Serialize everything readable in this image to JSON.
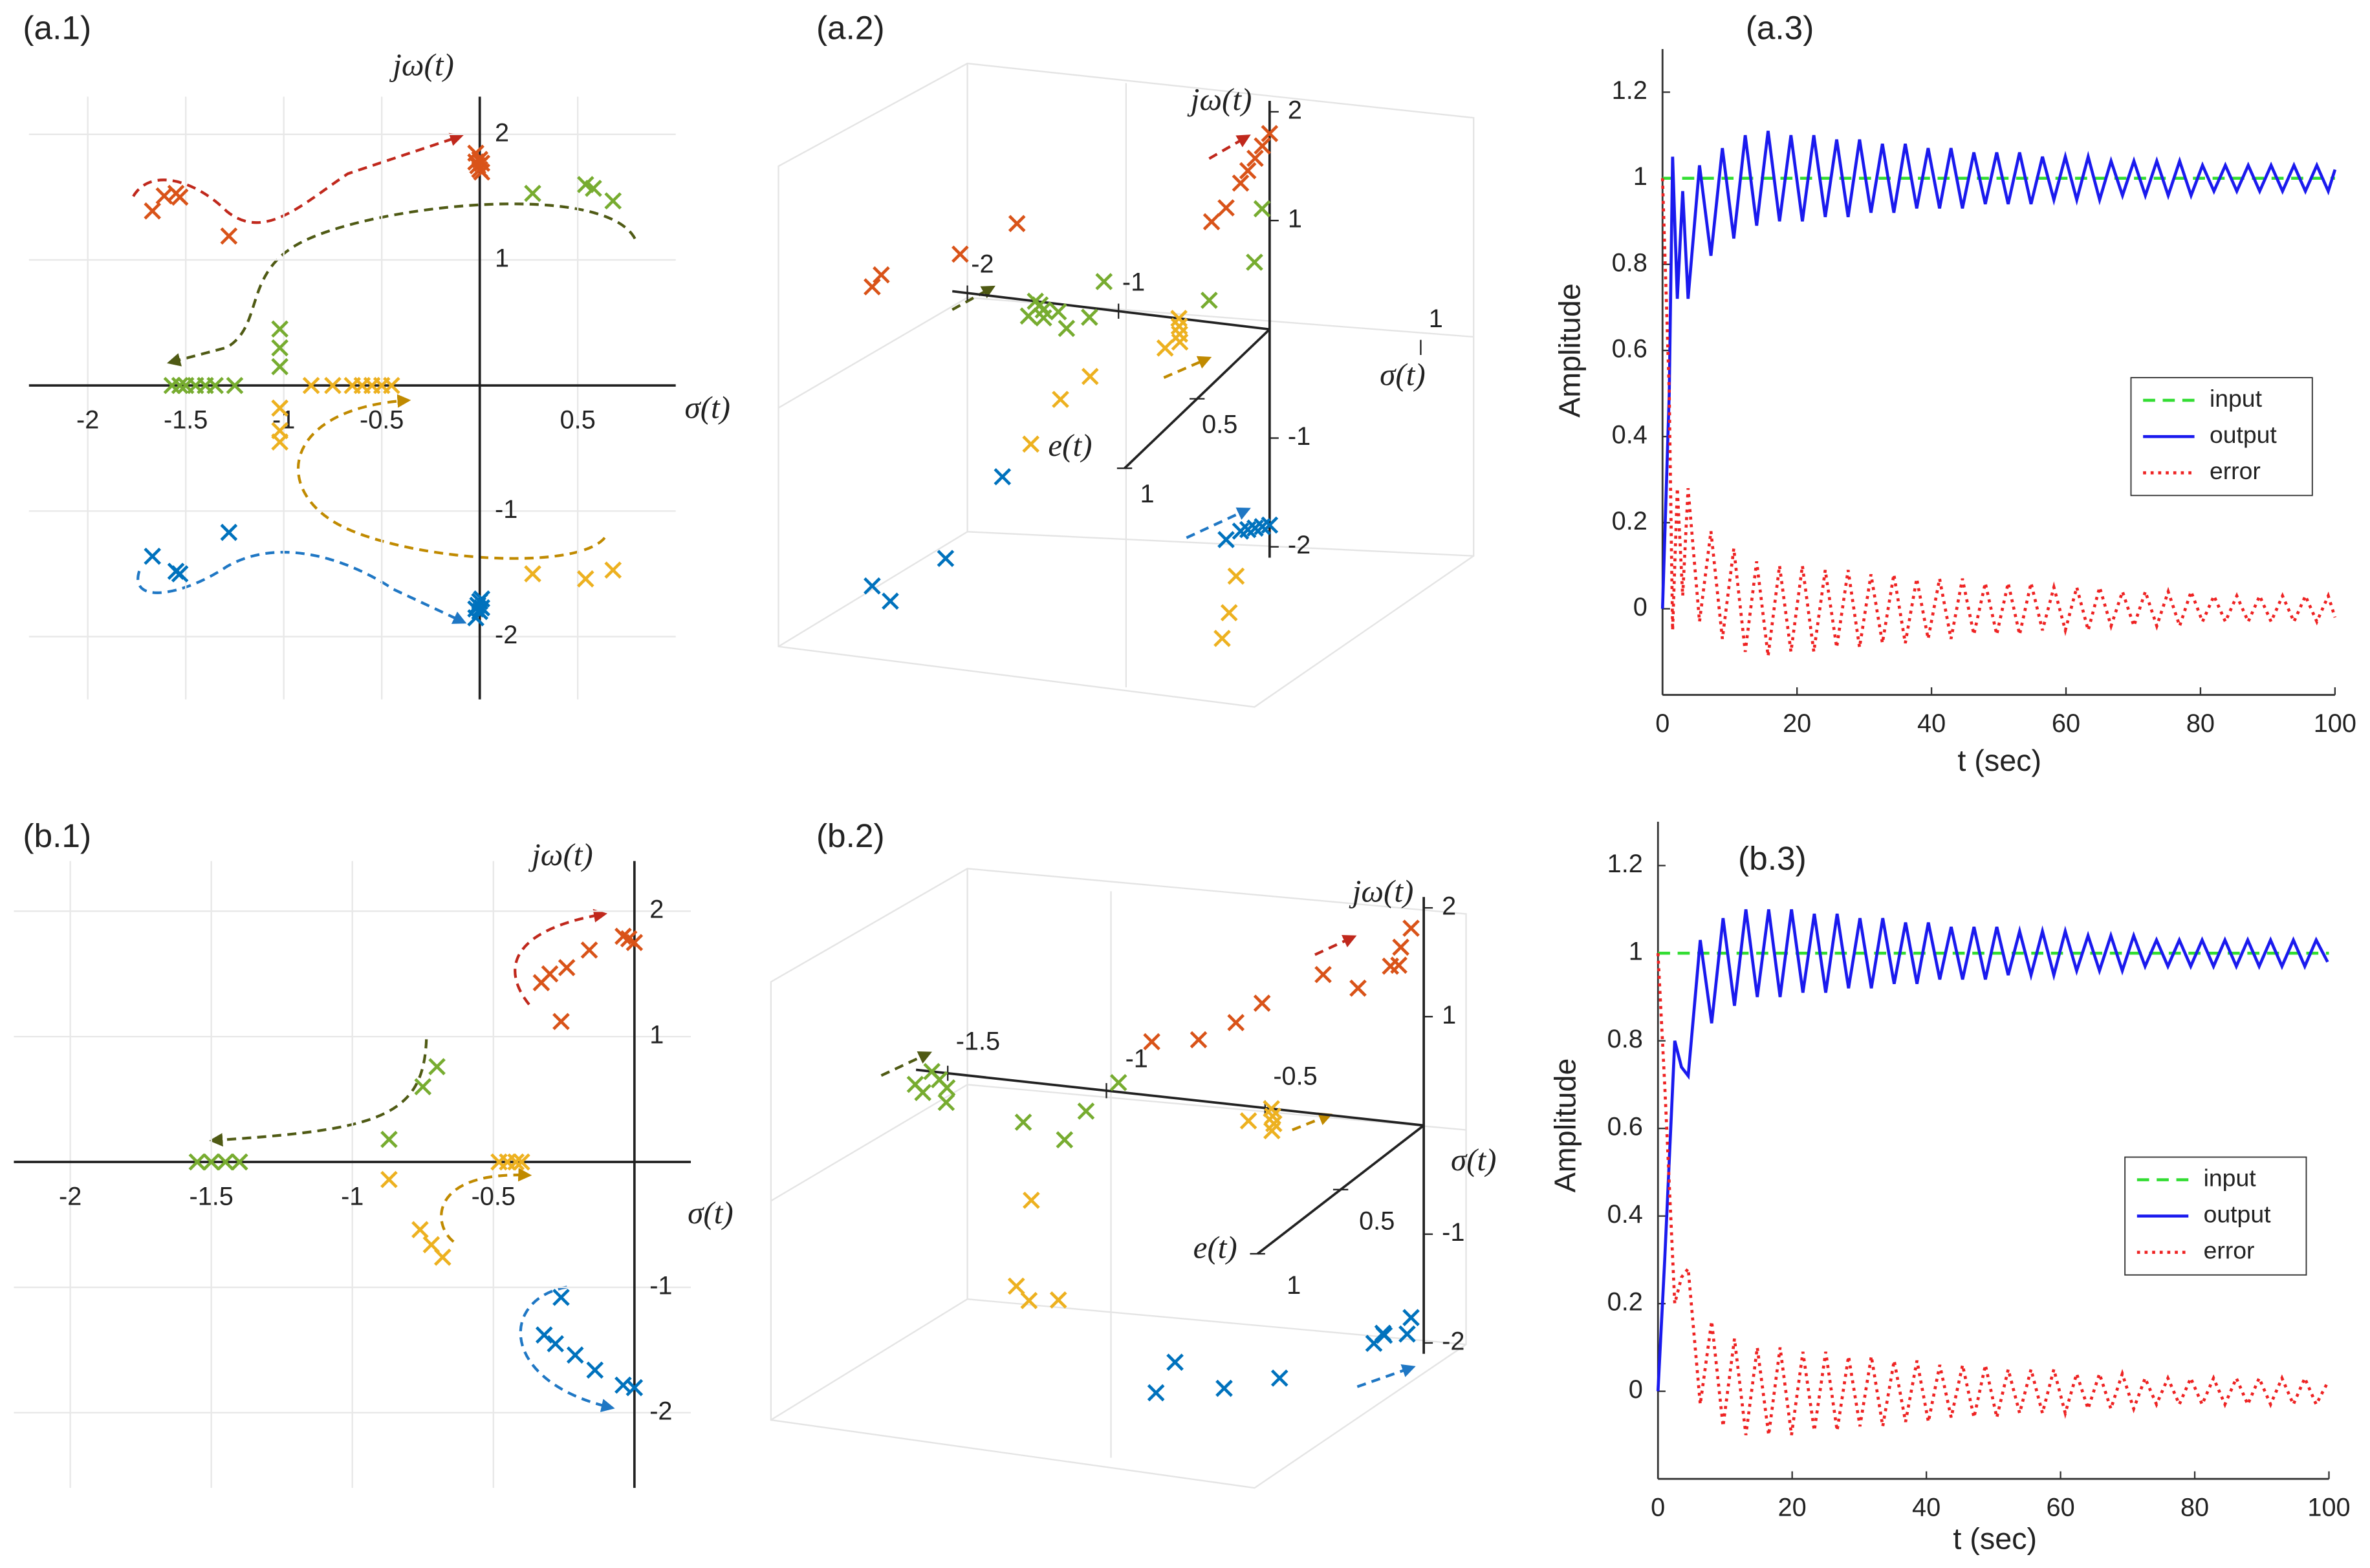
{
  "chart_data": [
    {
      "type": "scatter",
      "title": "(a.1)",
      "xlabel": "σ(t)",
      "ylabel": "jω(t)",
      "xlim": [
        -2.3,
        1.0
      ],
      "ylim": [
        -2.5,
        2.3
      ],
      "xticks": [
        -2,
        -1.5,
        -1,
        -0.5,
        0.5
      ],
      "yticks": [
        -2,
        -1,
        1,
        2
      ],
      "grid": true,
      "marker": "x",
      "series": [
        {
          "color": "#d95319",
          "x": [
            -1.67,
            -1.61,
            -1.55,
            -1.53,
            -1.28,
            -0.02,
            0,
            0.01,
            -0.01,
            0,
            0.01,
            -0.02
          ],
          "values": [
            1.39,
            1.51,
            1.53,
            1.5,
            1.19,
            1.85,
            1.8,
            1.77,
            1.75,
            1.72,
            1.7,
            1.78
          ]
        },
        {
          "color": "#77ac30",
          "x": [
            0.27,
            0.54,
            0.58,
            0.68,
            -1.57,
            -1.53,
            -1.5,
            -1.45,
            -1.4,
            -1.35,
            -1.25,
            -1.02,
            -1.02,
            -1.02
          ],
          "values": [
            1.53,
            1.6,
            1.57,
            1.47,
            0,
            0,
            0,
            0,
            0,
            0,
            0,
            0.45,
            0.3,
            0.15
          ]
        },
        {
          "color": "#edb120",
          "x": [
            -0.86,
            -0.75,
            -0.65,
            -0.6,
            -0.55,
            -0.5,
            -0.45,
            -1.02,
            -1.02,
            -1.02,
            0.27,
            0.54,
            0.68
          ],
          "values": [
            0,
            0,
            0,
            0,
            0,
            0,
            0,
            -0.18,
            -0.36,
            -0.45,
            -1.5,
            -1.54,
            -1.47
          ]
        },
        {
          "color": "#0072bd",
          "x": [
            -1.67,
            -1.55,
            -1.53,
            -1.28,
            -0.02,
            0,
            0.01,
            -0.01,
            0,
            0.01,
            -0.02
          ],
          "values": [
            -1.36,
            -1.48,
            -1.5,
            -1.17,
            -1.85,
            -1.8,
            -1.77,
            -1.75,
            -1.72,
            -1.7,
            -1.78
          ]
        }
      ]
    },
    {
      "type": "scatter3d",
      "title": "(a.2)",
      "xlabel": "σ(t)",
      "ylabel": "jω(t)",
      "zlabel": "e(t)",
      "xlim": [
        -2.1,
        1
      ],
      "ylim": [
        -2.1,
        2.1
      ],
      "zlim": [
        0,
        1
      ],
      "xticks": [
        -2,
        -1,
        1
      ],
      "yticks": [
        -2,
        -1,
        1,
        2
      ],
      "zticks": [
        0.5,
        1
      ],
      "marker": "x",
      "series": [
        {
          "color": "#d95319",
          "x": [
            -1.67,
            -1.61,
            -1.28,
            -1.0,
            0,
            0,
            0,
            0,
            0,
            0,
            0
          ],
          "values": [
            1.39,
            1.51,
            1.5,
            1.7,
            1.8,
            1.75,
            1.7,
            1.65,
            1.6,
            1.5,
            1.5
          ],
          "z": [
            1,
            1,
            0.8,
            0.7,
            0,
            0.05,
            0.1,
            0.15,
            0.2,
            0.3,
            0.4
          ]
        },
        {
          "color": "#77ac30",
          "x": [
            -1.55,
            -1.5,
            -1.45,
            -1.4,
            -1.5,
            -1.35,
            -1.2,
            -1.0,
            -1.0,
            -0.05,
            -0.1,
            -0.4
          ],
          "values": [
            0,
            0,
            0,
            0,
            0,
            0,
            0,
            0.4,
            0.2,
            1.1,
            0.6,
            0.2
          ],
          "z": [
            0,
            0.02,
            0.05,
            0.1,
            0.1,
            0.05,
            0.15,
            0.1,
            0.2,
            0,
            0,
            0
          ]
        },
        {
          "color": "#edb120",
          "x": [
            -0.6,
            -0.55,
            -0.5,
            -0.45,
            -0.5,
            -1,
            -0.9,
            -1.1,
            0.5,
            0.55,
            0.45
          ],
          "values": [
            0,
            0,
            0,
            0,
            0,
            -0.3,
            -0.2,
            -0.6,
            -1.5,
            -1.6,
            -1.3
          ],
          "z": [
            0,
            0.05,
            0.1,
            0.15,
            0.2,
            0.4,
            0.3,
            0.5,
            0.8,
            0.9,
            0.7
          ]
        },
        {
          "color": "#0072bd",
          "x": [
            -1.67,
            -1.55,
            -1.28,
            -1.0,
            0,
            0,
            0,
            0,
            0,
            0
          ],
          "values": [
            -1.36,
            -1.48,
            -1.17,
            -0.5,
            -1.8,
            -1.75,
            -1.7,
            -1.65,
            -1.6,
            -1.55
          ],
          "z": [
            1,
            1,
            0.9,
            0.8,
            0,
            0.05,
            0.1,
            0.15,
            0.2,
            0.3
          ]
        }
      ]
    },
    {
      "type": "line",
      "title": "(a.3)",
      "xlabel": "t (sec)",
      "ylabel": "Amplitude",
      "xlim": [
        0,
        100
      ],
      "ylim": [
        -0.2,
        1.3
      ],
      "xticks": [
        0,
        20,
        40,
        60,
        80,
        100
      ],
      "yticks": [
        0,
        0.2,
        0.4,
        0.6,
        0.8,
        1,
        1.2
      ],
      "legend": "east",
      "x": [
        0,
        1,
        1.5,
        2.2,
        3,
        3.8,
        5.5,
        7.2,
        8.9,
        10.6,
        12.3,
        14,
        15.7,
        17.4,
        19.1,
        20.8,
        22.5,
        24.2,
        25.9,
        27.6,
        29.3,
        31,
        32.7,
        34.4,
        36.1,
        37.8,
        39.5,
        41.2,
        42.9,
        44.6,
        46.3,
        48,
        49.7,
        51.4,
        53.1,
        54.8,
        56.5,
        58.2,
        59.9,
        61.6,
        63.3,
        65,
        66.7,
        68.4,
        70.1,
        71.8,
        73.5,
        75.2,
        76.9,
        78.6,
        80.3,
        82,
        83.7,
        85.4,
        87.1,
        88.8,
        90.5,
        92.2,
        93.9,
        95.6,
        97.3,
        99,
        100
      ],
      "series": [
        {
          "name": "input",
          "color": "#33dd33",
          "dash": "dashed",
          "x": [
            0,
            100
          ],
          "values": [
            1,
            1
          ]
        },
        {
          "name": "output",
          "color": "#1a1aee",
          "dash": "solid",
          "values": [
            0,
            0.5,
            1.05,
            0.72,
            0.97,
            0.72,
            1.03,
            0.82,
            1.07,
            0.86,
            1.1,
            0.89,
            1.11,
            0.9,
            1.1,
            0.9,
            1.1,
            0.91,
            1.09,
            0.91,
            1.09,
            0.92,
            1.08,
            0.92,
            1.08,
            0.93,
            1.07,
            0.93,
            1.07,
            0.93,
            1.06,
            0.94,
            1.06,
            0.94,
            1.06,
            0.94,
            1.05,
            0.95,
            1.05,
            0.95,
            1.05,
            0.95,
            1.04,
            0.96,
            1.04,
            0.96,
            1.04,
            0.96,
            1.04,
            0.96,
            1.03,
            0.97,
            1.03,
            0.97,
            1.03,
            0.97,
            1.03,
            0.97,
            1.03,
            0.97,
            1.03,
            0.97,
            1.02
          ]
        },
        {
          "name": "error",
          "color": "#ee2222",
          "dash": "dotted",
          "values": [
            1,
            0.5,
            -0.05,
            0.28,
            0.03,
            0.28,
            -0.03,
            0.18,
            -0.07,
            0.14,
            -0.1,
            0.11,
            -0.11,
            0.1,
            -0.1,
            0.1,
            -0.1,
            0.09,
            -0.09,
            0.09,
            -0.09,
            0.08,
            -0.08,
            0.08,
            -0.08,
            0.07,
            -0.07,
            0.07,
            -0.07,
            0.07,
            -0.06,
            0.06,
            -0.06,
            0.06,
            -0.06,
            0.06,
            -0.05,
            0.05,
            -0.05,
            0.05,
            -0.05,
            0.05,
            -0.04,
            0.04,
            -0.04,
            0.04,
            -0.04,
            0.04,
            -0.04,
            0.04,
            -0.03,
            0.03,
            -0.03,
            0.03,
            -0.03,
            0.03,
            -0.03,
            0.03,
            -0.03,
            0.03,
            -0.03,
            0.03,
            -0.02
          ]
        }
      ]
    },
    {
      "type": "scatter",
      "title": "(b.1)",
      "xlabel": "σ(t)",
      "ylabel": "jω(t)",
      "xlim": [
        -2.2,
        0.2
      ],
      "ylim": [
        -2.6,
        2.4
      ],
      "xticks": [
        -2,
        -1.5,
        -1,
        -0.5
      ],
      "yticks": [
        -2,
        -1,
        1,
        2
      ],
      "grid": true,
      "marker": "x",
      "series": [
        {
          "color": "#d95319",
          "x": [
            -0.33,
            -0.3,
            -0.24,
            -0.16,
            -0.26,
            -0.04,
            -0.02,
            0
          ],
          "values": [
            1.43,
            1.5,
            1.55,
            1.69,
            1.12,
            1.8,
            1.78,
            1.75
          ]
        },
        {
          "color": "#77ac30",
          "x": [
            -0.7,
            -0.75,
            -0.87,
            -1.55,
            -1.5,
            -1.45,
            -1.4
          ],
          "values": [
            0.76,
            0.6,
            0.18,
            0,
            0,
            0,
            0
          ]
        },
        {
          "color": "#edb120",
          "x": [
            -0.87,
            -0.76,
            -0.72,
            -0.68,
            -0.48,
            -0.45,
            -0.42,
            -0.4
          ],
          "values": [
            -0.14,
            -0.54,
            -0.66,
            -0.76,
            0,
            0,
            0,
            0
          ]
        },
        {
          "color": "#0072bd",
          "x": [
            -0.26,
            -0.32,
            -0.28,
            -0.21,
            -0.14,
            -0.04,
            0
          ],
          "values": [
            -1.08,
            -1.38,
            -1.45,
            -1.54,
            -1.66,
            -1.78,
            -1.8
          ]
        }
      ]
    },
    {
      "type": "scatter3d",
      "title": "(b.2)",
      "xlabel": "σ(t)",
      "ylabel": "jω(t)",
      "zlabel": "e(t)",
      "xlim": [
        -1.6,
        0
      ],
      "ylim": [
        -2.1,
        2.1
      ],
      "zlim": [
        0,
        1
      ],
      "xticks": [
        -1.5,
        -1,
        -0.5
      ],
      "yticks": [
        -2,
        -1,
        1,
        2
      ],
      "zticks": [
        0.5,
        1
      ],
      "marker": "x",
      "series": [
        {
          "color": "#d95319",
          "x": [
            -0.33,
            -0.3,
            -0.16,
            -0.5,
            -0.7,
            -0.04,
            -0.02,
            0,
            -0.05,
            0
          ],
          "values": [
            1.43,
            1.5,
            1.69,
            1.1,
            0.9,
            1.8,
            1.75,
            1.7,
            1.6,
            1.65
          ],
          "z": [
            0.5,
            0.4,
            0.3,
            0.4,
            0.3,
            0,
            0.1,
            0.2,
            0.3,
            0.15
          ]
        },
        {
          "color": "#77ac30",
          "x": [
            -1.55,
            -1.5,
            -1.45,
            -1.5,
            -1.4,
            -1.55,
            -0.87,
            -0.75,
            -0.7,
            -1.0
          ],
          "values": [
            0,
            0,
            0,
            0,
            0,
            0,
            0.18,
            0.6,
            0.76,
            0.3
          ],
          "z": [
            0,
            0.05,
            0.1,
            0.15,
            0.2,
            0.1,
            0.5,
            0.6,
            0.5,
            0.5
          ]
        },
        {
          "color": "#edb120",
          "x": [
            -0.48,
            -0.45,
            -0.42,
            -0.4,
            -0.5,
            -0.87,
            -0.76,
            -0.72,
            -0.68
          ],
          "values": [
            0,
            0,
            0,
            0,
            0,
            -0.14,
            -0.54,
            -0.66,
            -0.76
          ],
          "z": [
            0,
            0.05,
            0.1,
            0.15,
            0.1,
            0.7,
            1,
            1,
            0.9
          ]
        },
        {
          "color": "#0072bd",
          "x": [
            -0.04,
            0,
            -0.02,
            0,
            -0.05,
            -0.26,
            -0.32,
            -0.21,
            -0.14
          ],
          "values": [
            -1.78,
            -1.8,
            -1.7,
            -1.65,
            -1.75,
            -1.08,
            -1.38,
            -1.54,
            -1.66
          ],
          "z": [
            0,
            0.1,
            0.2,
            0.3,
            0.15,
            1,
            1,
            0.8,
            0.6
          ]
        }
      ]
    },
    {
      "type": "line",
      "title": "(b.3)",
      "xlabel": "t (sec)",
      "ylabel": "Amplitude",
      "xlim": [
        0,
        100
      ],
      "ylim": [
        -0.2,
        1.3
      ],
      "xticks": [
        0,
        20,
        40,
        60,
        80,
        100
      ],
      "yticks": [
        0,
        0.2,
        0.4,
        0.6,
        0.8,
        1,
        1.2
      ],
      "legend": "east",
      "x": [
        0,
        1,
        2.5,
        3.5,
        4.5,
        6.3,
        8,
        9.7,
        11.4,
        13.1,
        14.8,
        16.5,
        18.2,
        19.9,
        21.6,
        23.3,
        25,
        26.7,
        28.4,
        30.1,
        31.8,
        33.5,
        35.2,
        36.9,
        38.6,
        40.3,
        42,
        43.7,
        45.4,
        47.1,
        48.8,
        50.5,
        52.2,
        53.9,
        55.6,
        57.3,
        59,
        60.7,
        62.4,
        64.1,
        65.8,
        67.5,
        69.2,
        70.9,
        72.6,
        74.3,
        76,
        77.7,
        79.4,
        81.1,
        82.8,
        84.5,
        86.2,
        87.9,
        89.6,
        91.3,
        93,
        94.7,
        96.4,
        98.1,
        99.8
      ],
      "series": [
        {
          "name": "input",
          "color": "#33dd33",
          "dash": "dashed",
          "x": [
            0,
            100
          ],
          "values": [
            1,
            1
          ]
        },
        {
          "name": "output",
          "color": "#1a1aee",
          "dash": "solid",
          "values": [
            0,
            0.3,
            0.8,
            0.74,
            0.72,
            1.03,
            0.84,
            1.08,
            0.88,
            1.1,
            0.9,
            1.1,
            0.9,
            1.1,
            0.91,
            1.09,
            0.91,
            1.09,
            0.92,
            1.08,
            0.92,
            1.08,
            0.93,
            1.07,
            0.93,
            1.07,
            0.94,
            1.06,
            0.94,
            1.06,
            0.94,
            1.06,
            0.95,
            1.05,
            0.95,
            1.05,
            0.95,
            1.05,
            0.96,
            1.04,
            0.96,
            1.04,
            0.96,
            1.04,
            0.97,
            1.03,
            0.97,
            1.03,
            0.97,
            1.03,
            0.97,
            1.03,
            0.97,
            1.03,
            0.97,
            1.03,
            0.97,
            1.03,
            0.97,
            1.03,
            0.98
          ]
        },
        {
          "name": "error",
          "color": "#ee2222",
          "dash": "dotted",
          "values": [
            1,
            0.7,
            0.2,
            0.26,
            0.28,
            -0.03,
            0.16,
            -0.08,
            0.12,
            -0.1,
            0.1,
            -0.1,
            0.1,
            -0.1,
            0.09,
            -0.09,
            0.09,
            -0.09,
            0.08,
            -0.08,
            0.08,
            -0.08,
            0.07,
            -0.07,
            0.07,
            -0.07,
            0.06,
            -0.06,
            0.06,
            -0.06,
            0.06,
            -0.06,
            0.05,
            -0.05,
            0.05,
            -0.05,
            0.05,
            -0.05,
            0.04,
            -0.04,
            0.04,
            -0.04,
            0.04,
            -0.04,
            0.03,
            -0.03,
            0.03,
            -0.03,
            0.03,
            -0.03,
            0.03,
            -0.03,
            0.03,
            -0.03,
            0.03,
            -0.03,
            0.03,
            -0.03,
            0.03,
            -0.03,
            0.02
          ]
        }
      ]
    }
  ]
}
